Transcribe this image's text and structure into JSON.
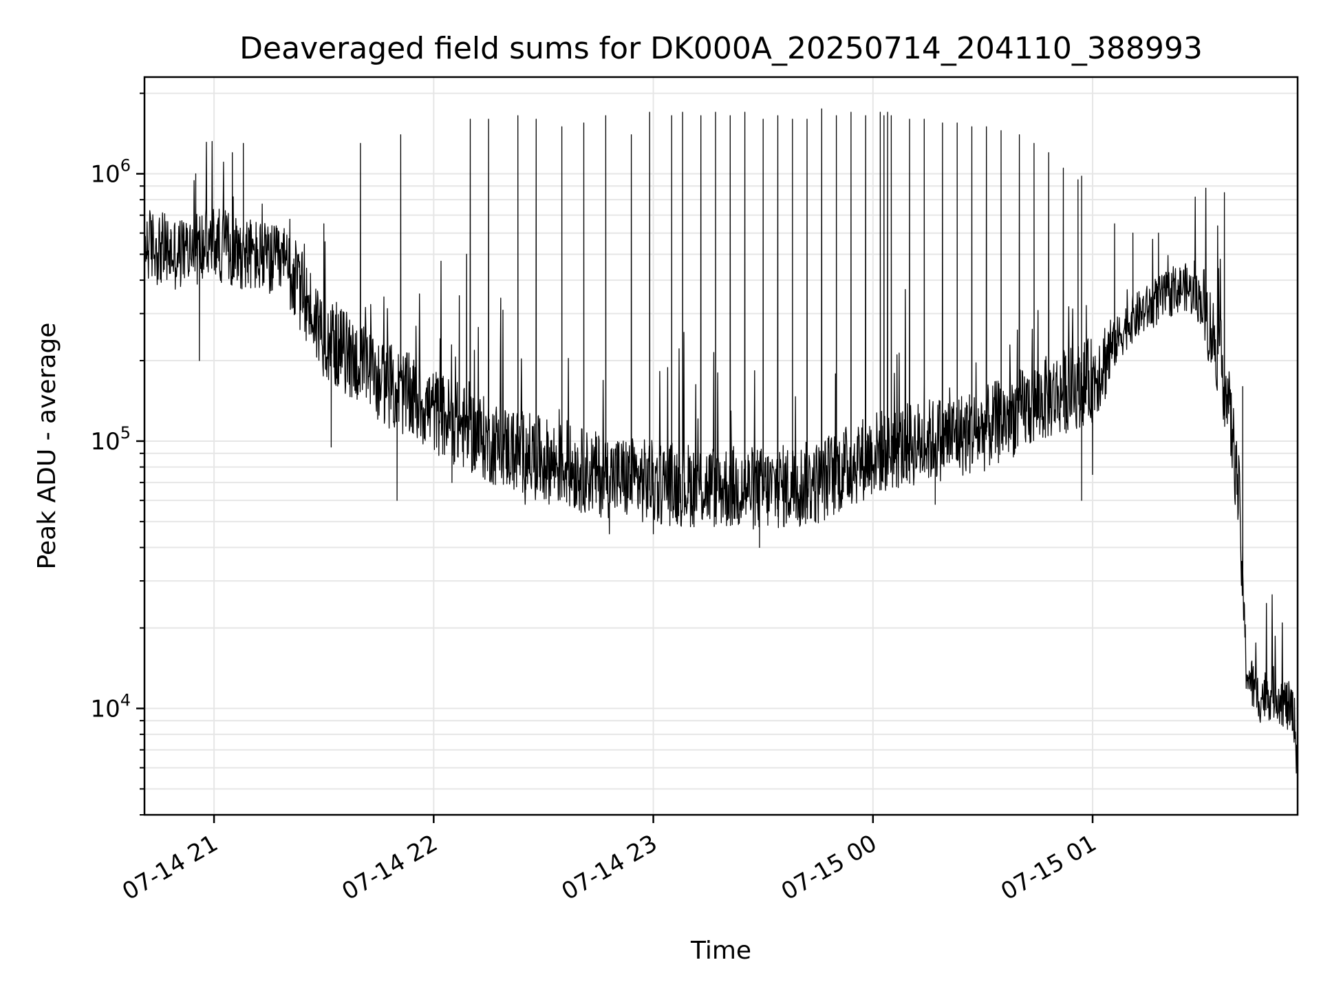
{
  "chart_data": {
    "type": "line",
    "title": "Deaveraged field sums for DK000A_20250714_204110_388993",
    "xlabel": "Time",
    "ylabel": "Peak ADU - average",
    "yscale": "log",
    "ylim": [
      4000,
      2300000
    ],
    "xlim": [
      "07-14 20:41",
      "07-15 01:56"
    ],
    "grid": true,
    "line_color": "#000000",
    "grid_color": "#e6e6e6",
    "x_ticks": [
      {
        "label": "07-14 21",
        "x": "07-14 21:00"
      },
      {
        "label": "07-14 22",
        "x": "07-14 22:00"
      },
      {
        "label": "07-14 23",
        "x": "07-14 23:00"
      },
      {
        "label": "07-15 00",
        "x": "07-15 00:00"
      },
      {
        "label": "07-15 01",
        "x": "07-15 01:00"
      }
    ],
    "y_ticks": [
      {
        "base": "10",
        "exp": "4",
        "value": 10000
      },
      {
        "base": "10",
        "exp": "5",
        "value": 100000
      },
      {
        "base": "10",
        "exp": "6",
        "value": 1000000
      }
    ],
    "baseline": {
      "x": [
        "07-14 20:41",
        "07-14 20:50",
        "07-14 21:00",
        "07-14 21:10",
        "07-14 21:20",
        "07-14 21:30",
        "07-14 21:45",
        "07-14 22:00",
        "07-14 22:15",
        "07-14 22:30",
        "07-14 22:45",
        "07-14 23:00",
        "07-14 23:15",
        "07-14 23:30",
        "07-14 23:45",
        "07-15 00:00",
        "07-15 00:15",
        "07-15 00:30",
        "07-15 00:45",
        "07-15 01:00",
        "07-15 01:10",
        "07-15 01:20",
        "07-15 01:25",
        "07-15 01:30",
        "07-15 01:35",
        "07-15 01:38",
        "07-15 01:40",
        "07-15 01:42",
        "07-15 01:45",
        "07-15 01:50",
        "07-15 01:55",
        "07-15 01:56"
      ],
      "y": [
        550000,
        500000,
        550000,
        500000,
        450000,
        250000,
        170000,
        130000,
        100000,
        85000,
        75000,
        70000,
        68000,
        66000,
        70000,
        90000,
        100000,
        110000,
        140000,
        170000,
        280000,
        350000,
        380000,
        330000,
        200000,
        110000,
        60000,
        14000,
        11000,
        11500,
        9500,
        6000
      ]
    },
    "spikes": [
      {
        "x": "07-14 20:55",
        "y": 1000000
      },
      {
        "x": "07-14 21:05",
        "y": 1200000
      },
      {
        "x": "07-14 21:08",
        "y": 1300000
      },
      {
        "x": "07-14 21:30",
        "y": 650000
      },
      {
        "x": "07-14 21:40",
        "y": 1300000
      },
      {
        "x": "07-14 21:51",
        "y": 1400000
      },
      {
        "x": "07-14 22:07",
        "y": 350000
      },
      {
        "x": "07-14 22:09",
        "y": 500000
      },
      {
        "x": "07-14 22:10",
        "y": 1600000
      },
      {
        "x": "07-14 22:15",
        "y": 1600000
      },
      {
        "x": "07-14 22:23",
        "y": 1650000
      },
      {
        "x": "07-14 22:28",
        "y": 1600000
      },
      {
        "x": "07-14 22:35",
        "y": 1500000
      },
      {
        "x": "07-14 22:41",
        "y": 1550000
      },
      {
        "x": "07-14 22:47",
        "y": 1650000
      },
      {
        "x": "07-14 22:54",
        "y": 1400000
      },
      {
        "x": "07-14 22:59",
        "y": 1700000
      },
      {
        "x": "07-14 23:05",
        "y": 1650000
      },
      {
        "x": "07-14 23:08",
        "y": 1700000
      },
      {
        "x": "07-14 23:13",
        "y": 1650000
      },
      {
        "x": "07-14 23:17",
        "y": 1700000
      },
      {
        "x": "07-14 23:21",
        "y": 1650000
      },
      {
        "x": "07-14 23:25",
        "y": 1700000
      },
      {
        "x": "07-14 23:30",
        "y": 1600000
      },
      {
        "x": "07-14 23:34",
        "y": 1650000
      },
      {
        "x": "07-14 23:38",
        "y": 1600000
      },
      {
        "x": "07-14 23:42",
        "y": 1600000
      },
      {
        "x": "07-14 23:46",
        "y": 1750000
      },
      {
        "x": "07-14 23:50",
        "y": 1650000
      },
      {
        "x": "07-14 23:54",
        "y": 1700000
      },
      {
        "x": "07-14 23:58",
        "y": 1650000
      },
      {
        "x": "07-15 00:02",
        "y": 1700000
      },
      {
        "x": "07-15 00:03",
        "y": 1650000
      },
      {
        "x": "07-15 00:04",
        "y": 1700000
      },
      {
        "x": "07-15 00:05",
        "y": 1650000
      },
      {
        "x": "07-15 00:10",
        "y": 1600000
      },
      {
        "x": "07-15 00:14",
        "y": 1600000
      },
      {
        "x": "07-15 00:19",
        "y": 1550000
      },
      {
        "x": "07-15 00:23",
        "y": 1550000
      },
      {
        "x": "07-15 00:27",
        "y": 1500000
      },
      {
        "x": "07-15 00:31",
        "y": 1500000
      },
      {
        "x": "07-15 00:35",
        "y": 1450000
      },
      {
        "x": "07-15 00:40",
        "y": 1400000
      },
      {
        "x": "07-15 00:44",
        "y": 1300000
      },
      {
        "x": "07-15 00:48",
        "y": 1200000
      },
      {
        "x": "07-15 00:52",
        "y": 1050000
      },
      {
        "x": "07-15 00:56",
        "y": 950000
      },
      {
        "x": "07-15 00:57",
        "y": 980000
      },
      {
        "x": "07-15 01:06",
        "y": 650000
      },
      {
        "x": "07-15 01:11",
        "y": 600000
      },
      {
        "x": "07-15 01:18",
        "y": 600000
      },
      {
        "x": "07-15 01:36",
        "y": 850000
      },
      {
        "x": "07-15 01:41",
        "y": 160000
      }
    ],
    "dips": [
      {
        "x": "07-14 20:56",
        "y": 200000
      },
      {
        "x": "07-14 21:32",
        "y": 95000
      },
      {
        "x": "07-14 21:50",
        "y": 60000
      },
      {
        "x": "07-14 22:05",
        "y": 70000
      },
      {
        "x": "07-14 22:25",
        "y": 58000
      },
      {
        "x": "07-14 22:48",
        "y": 45000
      },
      {
        "x": "07-14 23:00",
        "y": 45000
      },
      {
        "x": "07-14 23:29",
        "y": 40000
      },
      {
        "x": "07-14 23:40",
        "y": 48000
      },
      {
        "x": "07-15 00:17",
        "y": 58000
      },
      {
        "x": "07-15 00:57",
        "y": 60000
      },
      {
        "x": "07-15 01:00",
        "y": 75000
      }
    ]
  }
}
